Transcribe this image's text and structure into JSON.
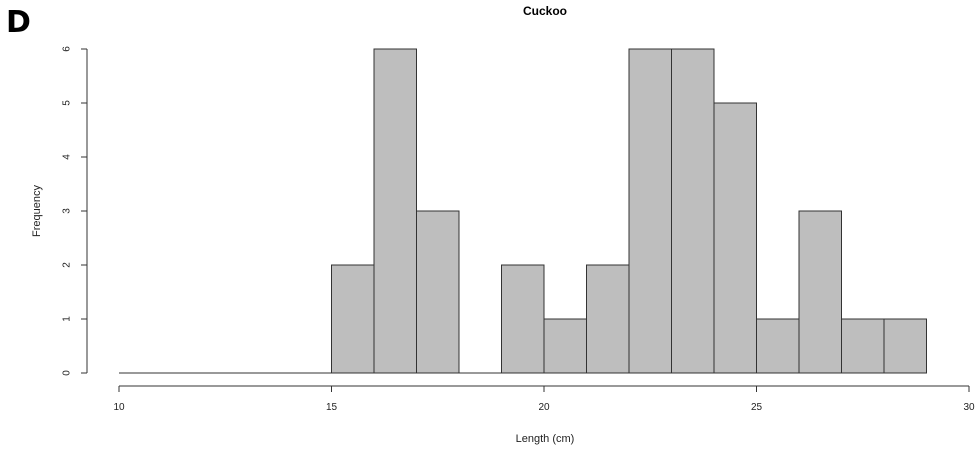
{
  "panel_label": "D",
  "chart_data": {
    "type": "bar",
    "title": "Cuckoo",
    "xlabel": "Length (cm)",
    "ylabel": "Frequency",
    "bins": [
      {
        "start": 10,
        "end": 11,
        "count": 0
      },
      {
        "start": 11,
        "end": 12,
        "count": 0
      },
      {
        "start": 12,
        "end": 13,
        "count": 0
      },
      {
        "start": 13,
        "end": 14,
        "count": 0
      },
      {
        "start": 14,
        "end": 15,
        "count": 0
      },
      {
        "start": 15,
        "end": 16,
        "count": 2
      },
      {
        "start": 16,
        "end": 17,
        "count": 6
      },
      {
        "start": 17,
        "end": 18,
        "count": 3
      },
      {
        "start": 18,
        "end": 19,
        "count": 0
      },
      {
        "start": 19,
        "end": 20,
        "count": 2
      },
      {
        "start": 20,
        "end": 21,
        "count": 1
      },
      {
        "start": 21,
        "end": 22,
        "count": 2
      },
      {
        "start": 22,
        "end": 23,
        "count": 6
      },
      {
        "start": 23,
        "end": 24,
        "count": 6
      },
      {
        "start": 24,
        "end": 25,
        "count": 5
      },
      {
        "start": 25,
        "end": 26,
        "count": 1
      },
      {
        "start": 26,
        "end": 27,
        "count": 3
      },
      {
        "start": 27,
        "end": 28,
        "count": 1
      },
      {
        "start": 28,
        "end": 29,
        "count": 1
      }
    ],
    "xlim": [
      10,
      30
    ],
    "ylim": [
      0,
      6
    ],
    "x_ticks": [
      "10",
      "15",
      "20",
      "25",
      "30"
    ],
    "y_ticks": [
      "0",
      "1",
      "2",
      "3",
      "4",
      "5",
      "6"
    ],
    "bar_color": "#bebebe",
    "edge_color": "#333333",
    "grid": false,
    "legend": "none"
  }
}
